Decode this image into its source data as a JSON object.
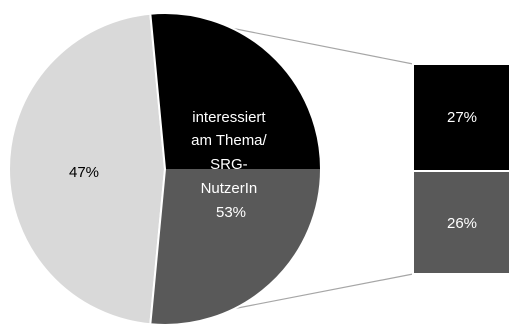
{
  "chart_data": {
    "type": "bar-of-pie",
    "pie": [
      {
        "key": "split",
        "value": 53,
        "label": [
          "interessiert",
          "am Thema/",
          "SRG-",
          "NutzerIn",
          "53%"
        ],
        "color_top": "#000000",
        "color_bottom": "#595959"
      },
      {
        "key": "rest",
        "value": 47,
        "label": [
          "47%"
        ],
        "color": "#d9d9d9"
      }
    ],
    "bar": [
      {
        "key": "top",
        "value": 27,
        "label": "27%",
        "color": "#000000"
      },
      {
        "key": "bottom",
        "value": 26,
        "label": "26%",
        "color": "#595959"
      }
    ],
    "connector_color": "#a6a6a6",
    "label_color_dark": "#ffffff",
    "label_color_light": "#000000"
  }
}
